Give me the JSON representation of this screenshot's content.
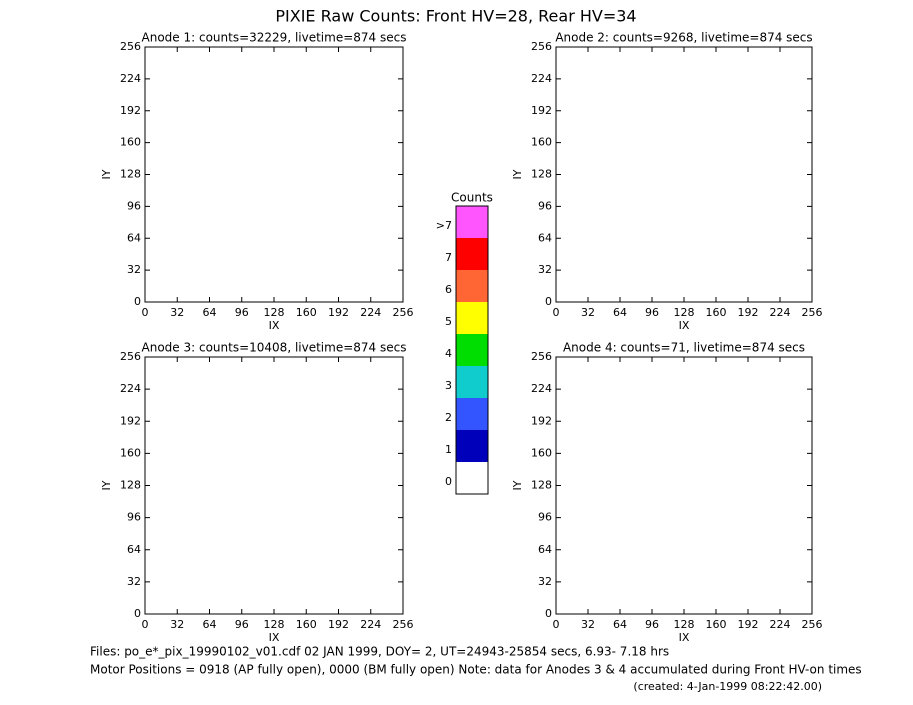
{
  "title": "PIXIE Raw Counts:  Front HV=28, Rear HV=34",
  "chart_data": [
    {
      "type": "heatmap",
      "title": "Anode 1: counts=32229, livetime=874 secs",
      "x_label": "IX",
      "y_label": "IY",
      "xlim": [
        0,
        256
      ],
      "ylim": [
        0,
        256
      ],
      "xticks": [
        0,
        32,
        64,
        96,
        128,
        160,
        192,
        224,
        256
      ],
      "yticks": [
        0,
        32,
        64,
        96,
        128,
        160,
        192,
        224,
        256
      ]
    },
    {
      "type": "heatmap",
      "title": "Anode 2: counts=9268, livetime=874 secs",
      "x_label": "IX",
      "y_label": "IY",
      "xlim": [
        0,
        256
      ],
      "ylim": [
        0,
        256
      ],
      "xticks": [
        0,
        32,
        64,
        96,
        128,
        160,
        192,
        224,
        256
      ],
      "yticks": [
        0,
        32,
        64,
        96,
        128,
        160,
        192,
        224,
        256
      ]
    },
    {
      "type": "heatmap",
      "title": "Anode 3: counts=10408, livetime=874 secs",
      "x_label": "IX",
      "y_label": "IY",
      "xlim": [
        0,
        256
      ],
      "ylim": [
        0,
        256
      ],
      "xticks": [
        0,
        32,
        64,
        96,
        128,
        160,
        192,
        224,
        256
      ],
      "yticks": [
        0,
        32,
        64,
        96,
        128,
        160,
        192,
        224,
        256
      ]
    },
    {
      "type": "heatmap",
      "title": "Anode 4: counts=71, livetime=874 secs",
      "x_label": "IX",
      "y_label": "IY",
      "xlim": [
        0,
        256
      ],
      "ylim": [
        0,
        256
      ],
      "xticks": [
        0,
        32,
        64,
        96,
        128,
        160,
        192,
        224,
        256
      ],
      "yticks": [
        0,
        32,
        64,
        96,
        128,
        160,
        192,
        224,
        256
      ]
    }
  ],
  "colorbar": {
    "title": "Counts",
    "levels": [
      {
        "label": ">7",
        "color": "#ff55ff"
      },
      {
        "label": "7",
        "color": "#ff0000"
      },
      {
        "label": "6",
        "color": "#ff6633"
      },
      {
        "label": "5",
        "color": "#ffff00"
      },
      {
        "label": "4",
        "color": "#00dd00"
      },
      {
        "label": "3",
        "color": "#11cccc"
      },
      {
        "label": "2",
        "color": "#3355ff"
      },
      {
        "label": "1",
        "color": "#0000bb"
      },
      {
        "label": "0",
        "color": "#ffffff"
      }
    ]
  },
  "footer": {
    "files": "Files: po_e*_pix_19990102_v01.cdf   02 JAN 1999, DOY=  2, UT=24943-25854 secs,  6.93- 7.18 hrs",
    "motor": "Motor Positions = 0918 (AP fully open), 0000 (BM fully open)    Note: data for Anodes 3 & 4 accumulated during Front HV-on times",
    "created": "(created:  4-Jan-1999 08:22:42.00)"
  }
}
